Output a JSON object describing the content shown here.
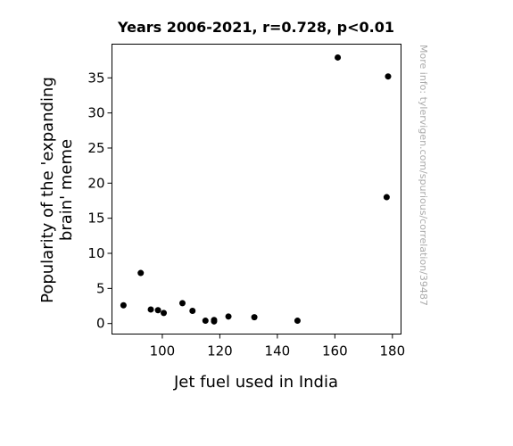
{
  "chart_data": {
    "type": "scatter",
    "title": "Years 2006-2021, r=0.728, p<0.01",
    "xlabel": "Jet fuel used in India",
    "ylabel_line1": "Popularity of the 'expanding",
    "ylabel_line2": "brain' meme",
    "side_note": "More info: tylervigen.com/spurious/correlation/39487",
    "xlim": [
      82.5,
      183
    ],
    "ylim": [
      -1.5,
      39.8
    ],
    "xticks": [
      100,
      120,
      140,
      160,
      180
    ],
    "yticks": [
      0,
      5,
      10,
      15,
      20,
      25,
      30,
      35
    ],
    "grid": false,
    "marker_color": "#000000",
    "points": [
      {
        "x": 86.5,
        "y": 2.6
      },
      {
        "x": 92.5,
        "y": 7.2
      },
      {
        "x": 96.0,
        "y": 2.0
      },
      {
        "x": 98.5,
        "y": 1.9
      },
      {
        "x": 100.5,
        "y": 1.5
      },
      {
        "x": 107.0,
        "y": 2.9
      },
      {
        "x": 110.5,
        "y": 1.8
      },
      {
        "x": 115.0,
        "y": 0.4
      },
      {
        "x": 118.0,
        "y": 0.3
      },
      {
        "x": 118.0,
        "y": 0.5
      },
      {
        "x": 123.0,
        "y": 1.0
      },
      {
        "x": 132.0,
        "y": 0.9
      },
      {
        "x": 147.0,
        "y": 0.4
      },
      {
        "x": 161.0,
        "y": 37.9
      },
      {
        "x": 178.0,
        "y": 18.0
      },
      {
        "x": 178.5,
        "y": 35.2
      }
    ]
  }
}
